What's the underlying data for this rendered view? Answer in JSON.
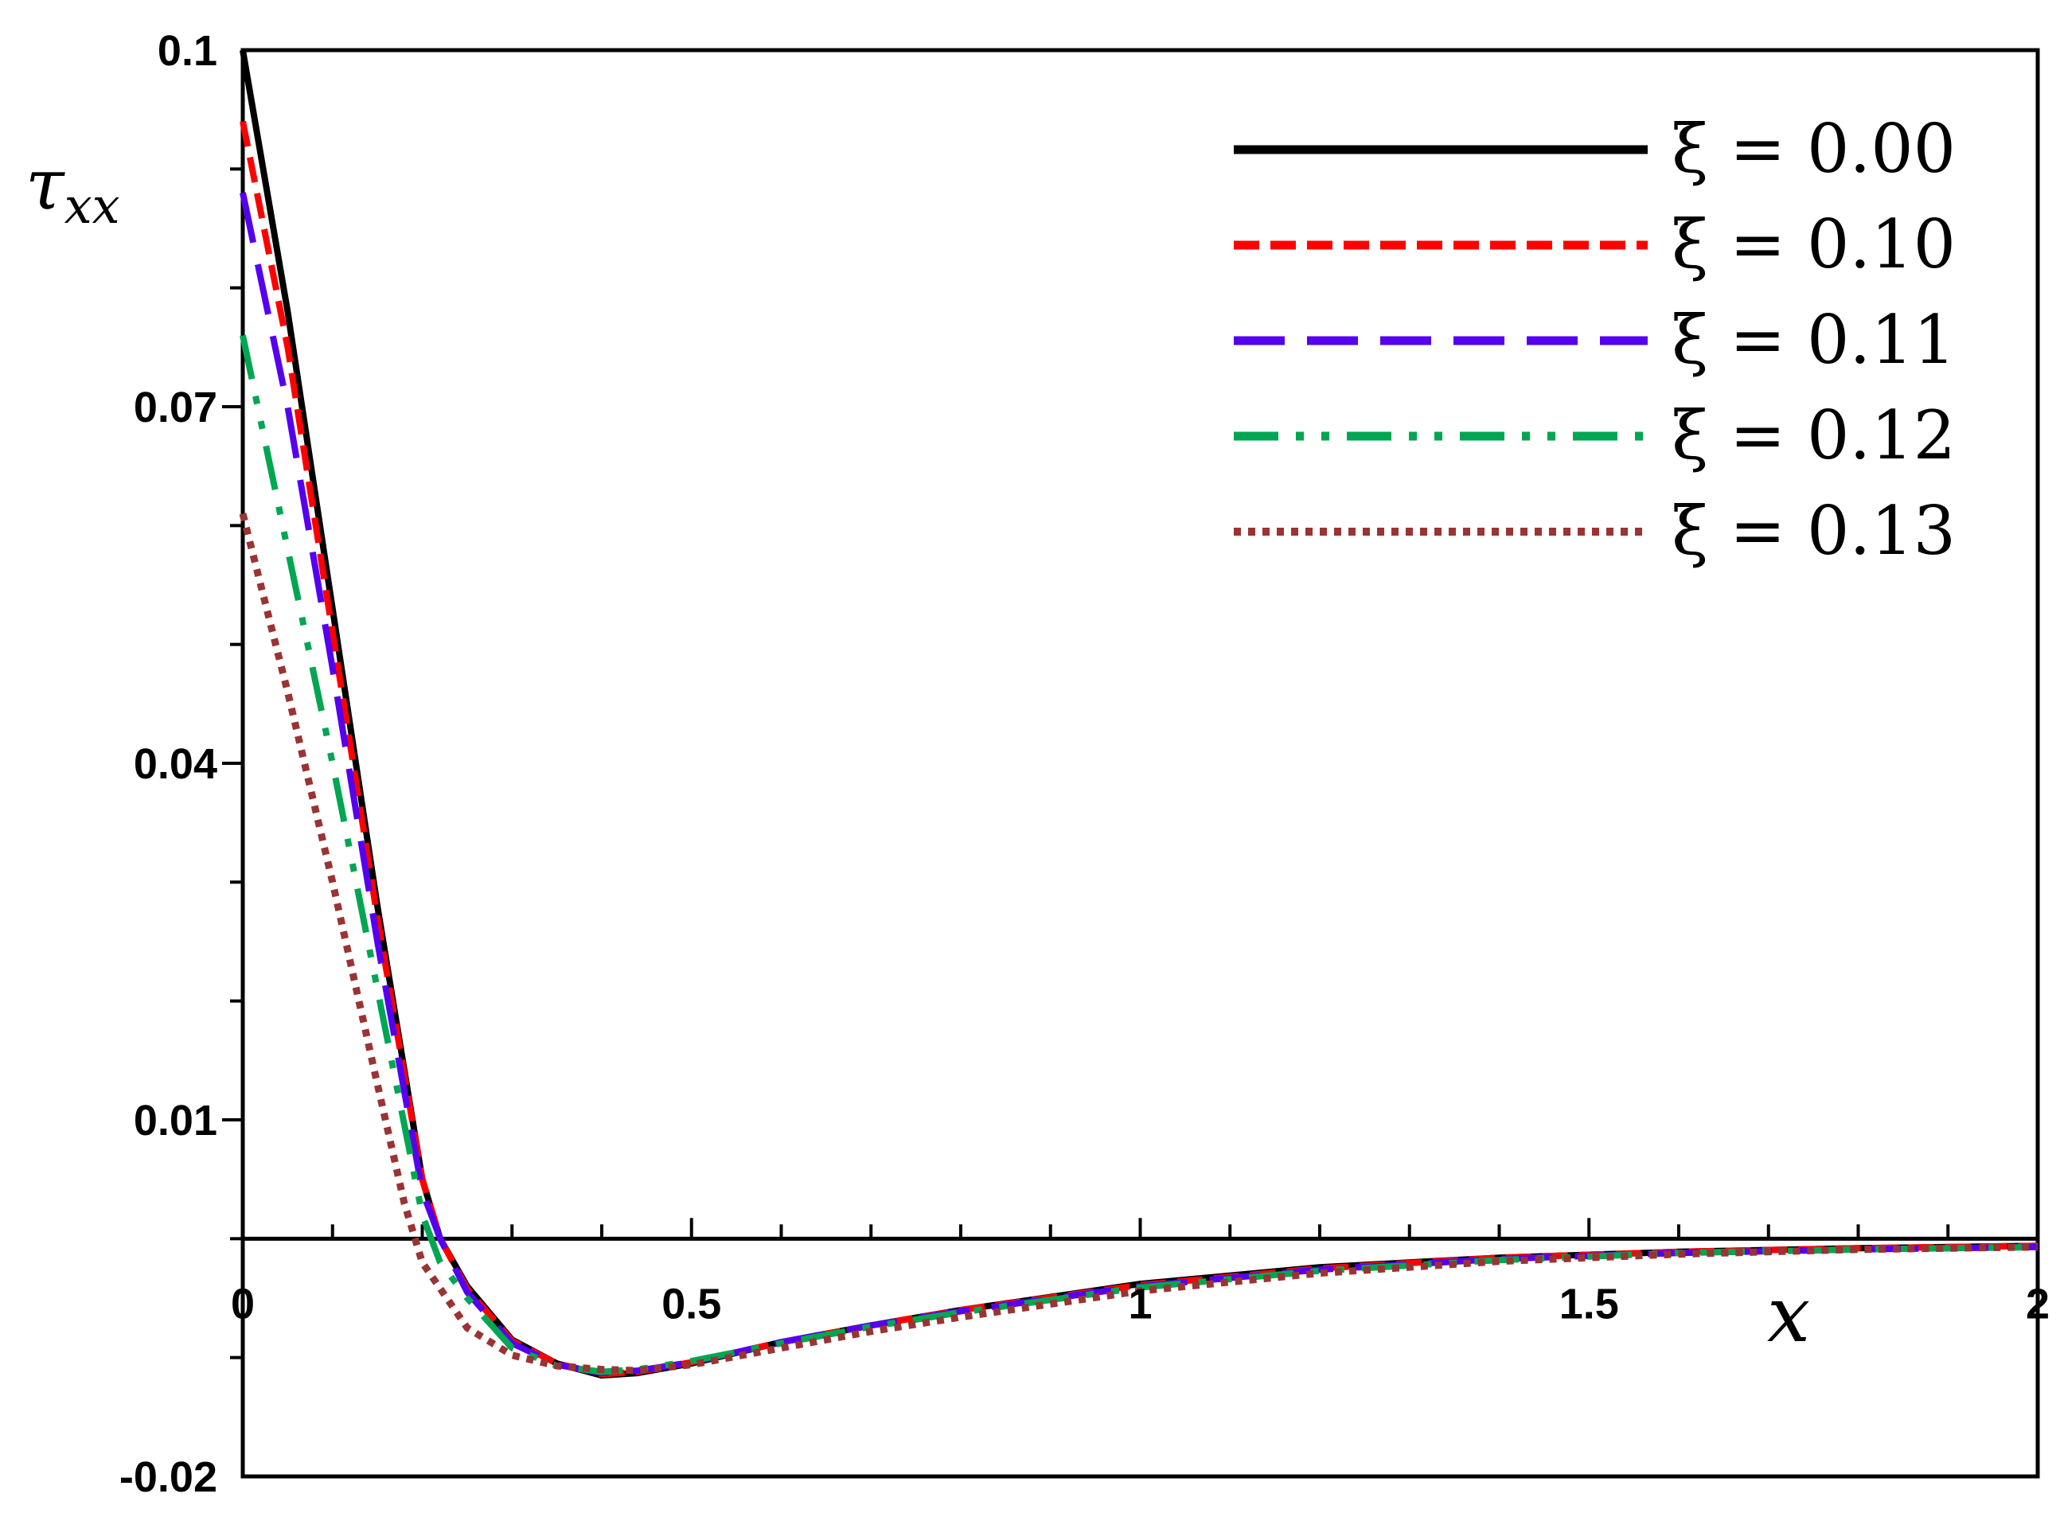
{
  "chart_data": {
    "type": "line",
    "xlabel": "x",
    "ylabel": "τxx",
    "xlim": [
      0,
      2
    ],
    "ylim": [
      -0.02,
      0.1
    ],
    "x_ticks": [
      0,
      0.5,
      1,
      1.5,
      2
    ],
    "x_tick_labels": [
      "0",
      "0.5",
      "1",
      "1.5",
      "2"
    ],
    "x_minor_step": 0.1,
    "y_ticks": [
      0.1,
      0.07,
      0.04,
      0.01,
      -0.02
    ],
    "y_tick_labels": [
      "0.1",
      "0.07",
      "0.04",
      "0.01",
      "-0.02"
    ],
    "y_minor_step": 0.01,
    "x_axis_at_y": 0,
    "grid": false,
    "legend_position": "top-right",
    "series": [
      {
        "name": "ξ = 0.00",
        "color": "#000000",
        "style": "solid",
        "x": [
          0,
          0.05,
          0.1,
          0.15,
          0.2,
          0.22,
          0.25,
          0.3,
          0.35,
          0.4,
          0.44,
          0.5,
          0.6,
          0.7,
          0.8,
          1.0,
          1.2,
          1.4,
          1.6,
          1.8,
          2.0
        ],
        "y": [
          0.1,
          0.078,
          0.053,
          0.028,
          0.005,
          0.0,
          -0.004,
          -0.0085,
          -0.0105,
          -0.0115,
          -0.0113,
          -0.0105,
          -0.0087,
          -0.0073,
          -0.006,
          -0.0038,
          -0.0024,
          -0.0016,
          -0.0011,
          -0.0008,
          -0.0006
        ]
      },
      {
        "name": "ξ = 0.10",
        "color": "#ff0000",
        "style": "dashed",
        "x": [
          0,
          0.05,
          0.1,
          0.15,
          0.2,
          0.22,
          0.25,
          0.3,
          0.35,
          0.4,
          0.44,
          0.5,
          0.6,
          0.7,
          0.8,
          1.0,
          1.2,
          1.4,
          1.6,
          1.8,
          2.0
        ],
        "y": [
          0.094,
          0.075,
          0.051,
          0.027,
          0.005,
          0.0,
          -0.0042,
          -0.0086,
          -0.0105,
          -0.0114,
          -0.0112,
          -0.0104,
          -0.0087,
          -0.0073,
          -0.006,
          -0.0039,
          -0.0025,
          -0.0016,
          -0.0011,
          -0.0008,
          -0.0006
        ]
      },
      {
        "name": "ξ = 0.11",
        "color": "#5500ee",
        "style": "longdash",
        "x": [
          0,
          0.05,
          0.1,
          0.15,
          0.2,
          0.22,
          0.25,
          0.3,
          0.35,
          0.4,
          0.44,
          0.5,
          0.6,
          0.7,
          0.8,
          1.0,
          1.2,
          1.4,
          1.6,
          1.8,
          2.0
        ],
        "y": [
          0.088,
          0.07,
          0.048,
          0.025,
          0.004,
          0.0,
          -0.0045,
          -0.0088,
          -0.0106,
          -0.0113,
          -0.0111,
          -0.0104,
          -0.0087,
          -0.0073,
          -0.0061,
          -0.004,
          -0.0026,
          -0.0017,
          -0.0012,
          -0.0009,
          -0.0007
        ]
      },
      {
        "name": "ξ = 0.12",
        "color": "#00a651",
        "style": "dashdotdot",
        "x": [
          0,
          0.05,
          0.1,
          0.15,
          0.2,
          0.22,
          0.25,
          0.3,
          0.35,
          0.4,
          0.44,
          0.5,
          0.6,
          0.7,
          0.8,
          1.0,
          1.2,
          1.4,
          1.6,
          1.8,
          2.0
        ],
        "y": [
          0.076,
          0.058,
          0.04,
          0.021,
          0.002,
          -0.002,
          -0.005,
          -0.0092,
          -0.0107,
          -0.0112,
          -0.011,
          -0.0103,
          -0.0088,
          -0.0074,
          -0.0062,
          -0.0041,
          -0.0027,
          -0.0018,
          -0.0012,
          -0.0009,
          -0.0007
        ]
      },
      {
        "name": "ξ = 0.13",
        "color": "#9b3333",
        "style": "dotted",
        "x": [
          0,
          0.03,
          0.05,
          0.1,
          0.15,
          0.18,
          0.2,
          0.25,
          0.3,
          0.35,
          0.4,
          0.44,
          0.5,
          0.6,
          0.7,
          0.8,
          1.0,
          1.2,
          1.4,
          1.6,
          1.8,
          2.0
        ],
        "y": [
          0.061,
          0.052,
          0.046,
          0.03,
          0.013,
          0.003,
          -0.002,
          -0.0075,
          -0.0098,
          -0.0107,
          -0.011,
          -0.0111,
          -0.0106,
          -0.0092,
          -0.0078,
          -0.0066,
          -0.0044,
          -0.0029,
          -0.0019,
          -0.0013,
          -0.0009,
          -0.0007
        ]
      }
    ]
  }
}
